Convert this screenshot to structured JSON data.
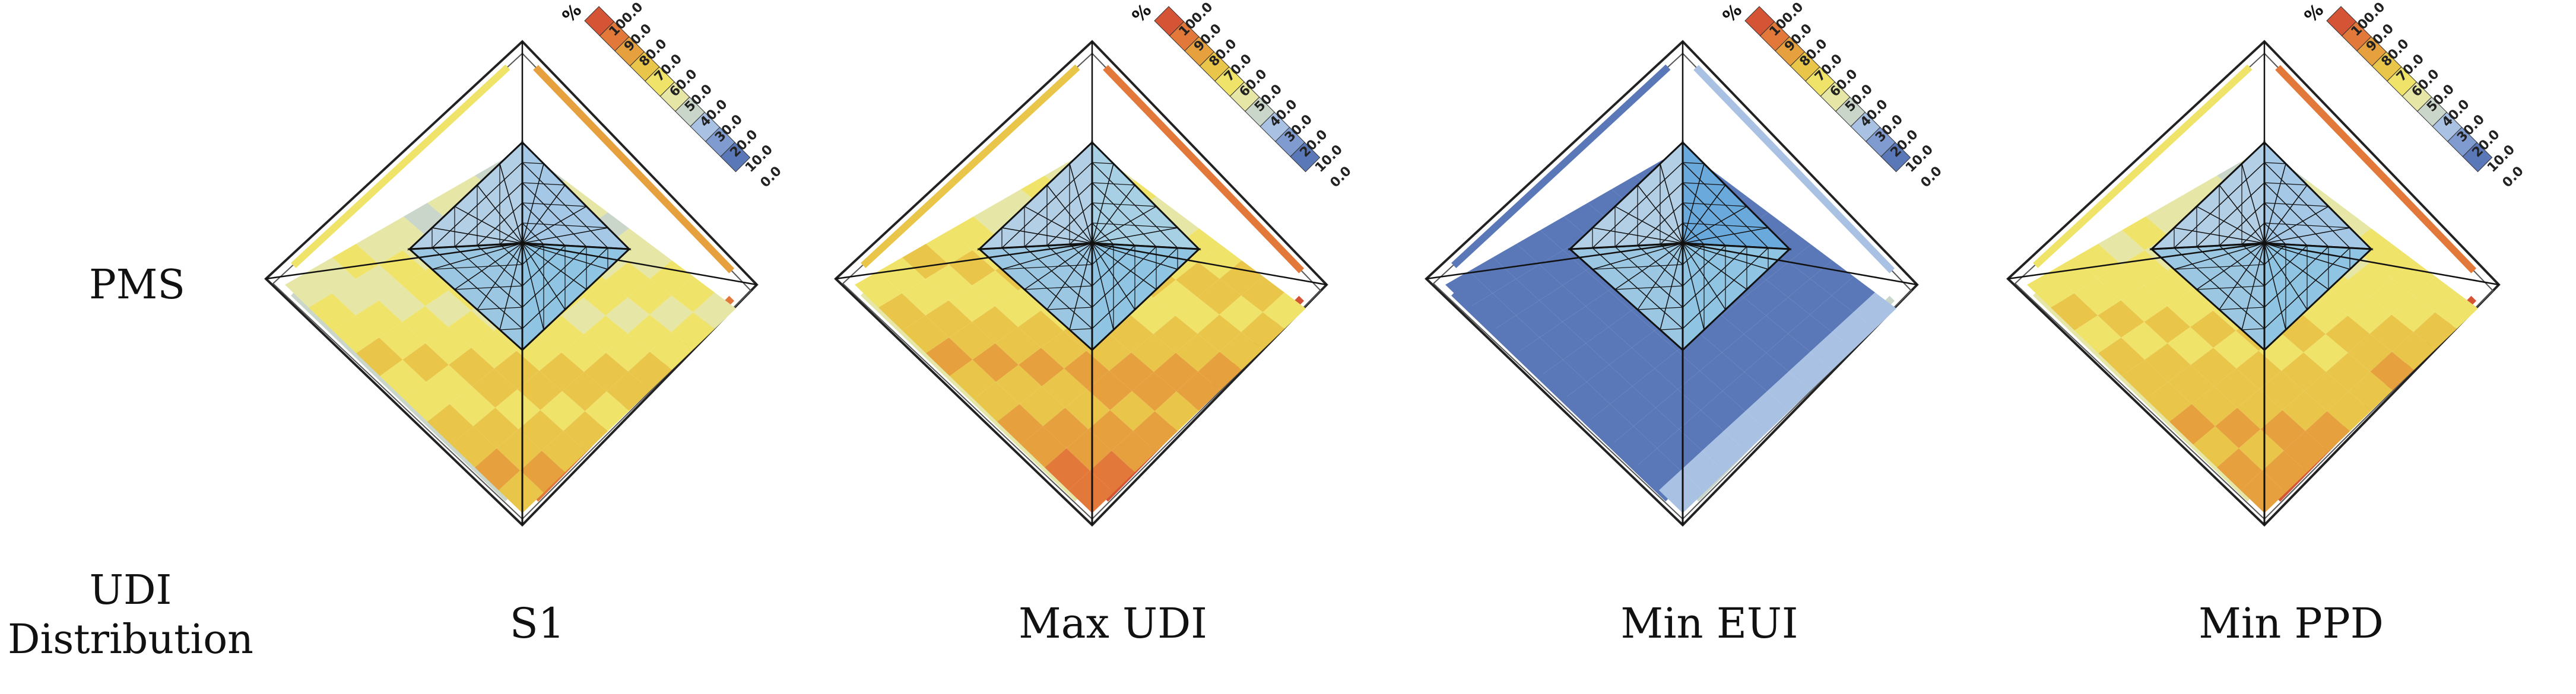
{
  "row_labels": {
    "pms": "PMS",
    "udi": "UDI\nDistribution"
  },
  "colorbar": {
    "unit": "%",
    "ticks": [
      "0.0",
      "10.0",
      "20.0",
      "30.0",
      "40.0",
      "50.0",
      "60.0",
      "70.0",
      "80.0",
      "90.0",
      "100.0"
    ],
    "colors": [
      "#5a78b8",
      "#7f9bd0",
      "#a9c1e2",
      "#c9d6c9",
      "#e6e6a6",
      "#f0e36a",
      "#e9c64a",
      "#e6a03e",
      "#e2793a",
      "#d65436"
    ]
  },
  "panels": [
    {
      "name": "S1",
      "udi_level": 0.62,
      "roof_tint": "#a5c8e6"
    },
    {
      "name": "Max UDI",
      "udi_level": 0.72,
      "roof_tint": "#a8d0e4"
    },
    {
      "name": "Min EUI",
      "udi_level": 0.1,
      "roof_tint": "#6aa9dc"
    },
    {
      "name": "Min PPD",
      "udi_level": 0.68,
      "roof_tint": "#a5c8e6"
    }
  ]
}
